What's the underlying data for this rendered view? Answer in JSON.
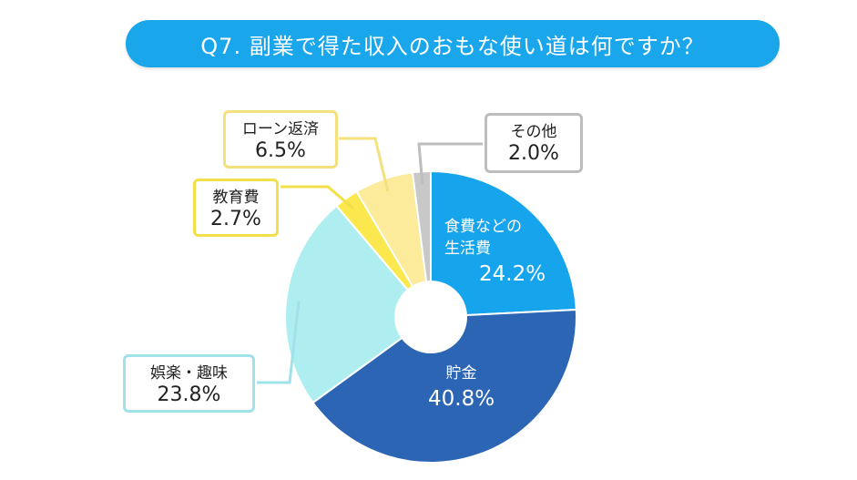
{
  "title": "Q7. 副業で得た収入のおもな使い道は何ですか？",
  "chart_data": {
    "type": "pie",
    "donut": true,
    "slices": [
      {
        "label": "食費などの生活費",
        "label_line1": "食費などの",
        "label_line2": "生活費",
        "value": 24.2,
        "value_text": "24.2%",
        "color": "#16a4ec"
      },
      {
        "label": "貯金",
        "value": 40.8,
        "value_text": "40.8%",
        "color": "#2c65b4"
      },
      {
        "label": "娯楽・趣味",
        "value": 23.8,
        "value_text": "23.8%",
        "color": "#aeeef0"
      },
      {
        "label": "教育費",
        "value": 2.7,
        "value_text": "2.7%",
        "color": "#fbe84e"
      },
      {
        "label": "ローン返済",
        "value": 6.5,
        "value_text": "6.5%",
        "color": "#fbeb9a"
      },
      {
        "label": "その他",
        "value": 2.0,
        "value_text": "2.0%",
        "color": "#c8c8c8"
      }
    ]
  }
}
